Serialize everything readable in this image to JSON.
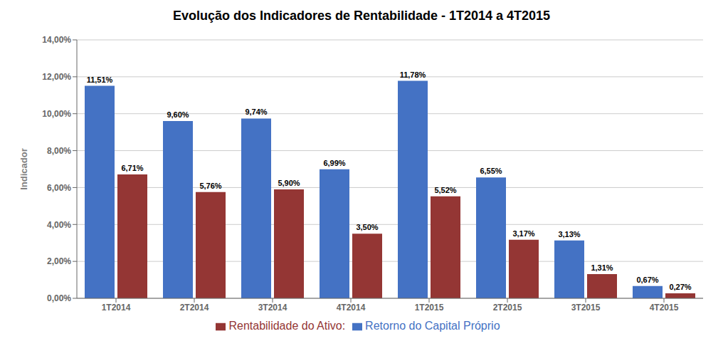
{
  "chart_data": {
    "type": "bar",
    "title": "Evolução dos Indicadores de Rentabilidade - 1T2014 a 4T2015",
    "ylabel": "Indicador",
    "categories": [
      "1T2014",
      "2T2014",
      "3T2014",
      "4T2014",
      "1T2015",
      "2T2015",
      "3T2015",
      "4T2015"
    ],
    "series": [
      {
        "name": "Retorno do Capital Próprio",
        "color": "#4472C4",
        "values": [
          11.51,
          9.6,
          9.74,
          6.99,
          11.78,
          6.55,
          3.13,
          0.67
        ],
        "value_labels": [
          "11,51%",
          "9,60%",
          "9,74%",
          "6,99%",
          "11,78%",
          "6,55%",
          "3,13%",
          "0,67%"
        ]
      },
      {
        "name": "Rentabilidade do Ativo:",
        "color": "#943634",
        "values": [
          6.71,
          5.76,
          5.9,
          3.5,
          5.52,
          3.17,
          1.31,
          0.27
        ],
        "value_labels": [
          "6,71%",
          "5,76%",
          "5,90%",
          "3,50%",
          "5,52%",
          "3,17%",
          "1,31%",
          "0,27%"
        ]
      }
    ],
    "ylim": [
      0,
      14.0
    ],
    "yticks": [
      {
        "value": 0,
        "label": "0,00%"
      },
      {
        "value": 2,
        "label": "2,00%"
      },
      {
        "value": 4,
        "label": "4,00%"
      },
      {
        "value": 6,
        "label": "6,00%"
      },
      {
        "value": 8,
        "label": "8,00%"
      },
      {
        "value": 10,
        "label": "10,00%"
      },
      {
        "value": 12,
        "label": "12,00%"
      },
      {
        "value": 14,
        "label": "14,00%"
      }
    ],
    "grid": true,
    "legend": "bottom",
    "data_labels": true
  }
}
